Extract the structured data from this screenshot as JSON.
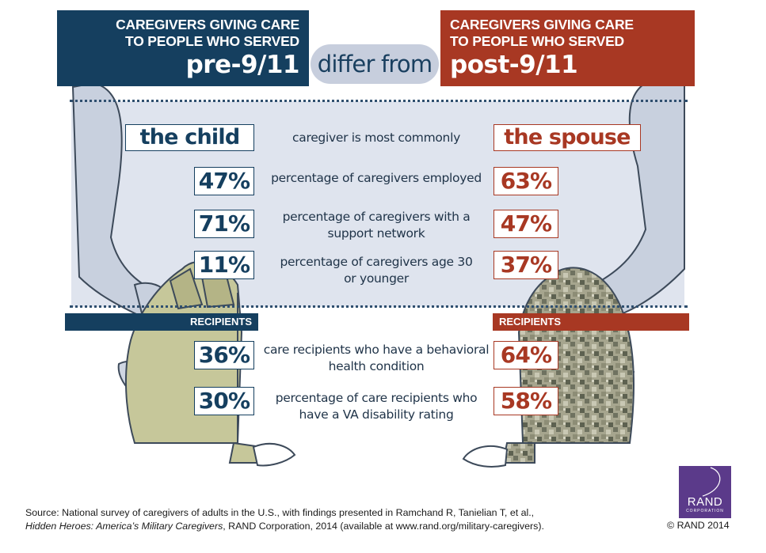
{
  "header": {
    "left_sub_line1": "CAREGIVERS GIVING CARE",
    "left_sub_line2": "TO PEOPLE WHO SERVED",
    "left_big": "pre-9/11",
    "connector": "differ from",
    "right_sub_line1": "CAREGIVERS GIVING CARE",
    "right_sub_line2": "TO PEOPLE WHO SERVED",
    "right_big": "post-9/11"
  },
  "caregivers": {
    "rows": [
      {
        "label": "caregiver is most commonly",
        "pre": "the child",
        "post": "the spouse"
      },
      {
        "label": "percentage of caregivers employed",
        "pre": "47%",
        "post": "63%"
      },
      {
        "label_line1": "percentage of caregivers with a",
        "label_line2": "support network",
        "pre": "71%",
        "post": "47%"
      },
      {
        "label_line1": "percentage of caregivers age 30",
        "label_line2": "or younger",
        "pre": "11%",
        "post": "37%"
      }
    ]
  },
  "recipients": {
    "pre_label": "RECIPIENTS",
    "post_label": "RECIPIENTS",
    "rows": [
      {
        "label_line1": "care recipients who have a behavioral",
        "label_line2": "health condition",
        "pre": "36%",
        "post": "64%"
      },
      {
        "label_line1": "percentage of care recipients who",
        "label_line2": "have a VA disability rating",
        "pre": "30%",
        "post": "58%"
      }
    ]
  },
  "footer": {
    "source_line1": "Source: National survey of caregivers of adults in the U.S., with findings presented in Ramchand R, Tanielian T, et al.,",
    "source_title": "Hidden Heroes: America’s Military Caregivers",
    "source_rest": ", RAND Corporation, 2014 (available at www.rand.org/military-caregivers).",
    "copyright": "© RAND 2014",
    "logo_text": "RAND",
    "logo_sub": "CORPORATION"
  },
  "colors": {
    "pre": "#153f5f",
    "post": "#a83823",
    "panel": "#dfe4ee",
    "logo": "#5b3a8a"
  }
}
